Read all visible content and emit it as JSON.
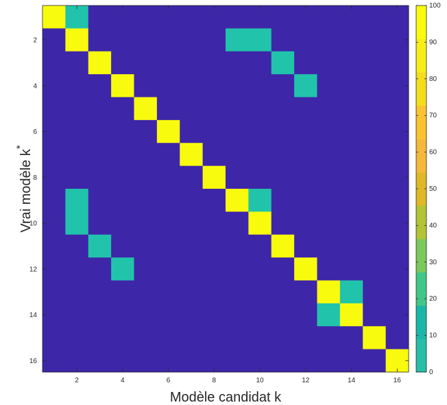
{
  "chart_data": {
    "type": "heatmap",
    "xlabel": "Modèle candidat k",
    "ylabel": "Vrai modèle k",
    "ylabel_superscript": "*",
    "x_categories": [
      1,
      2,
      3,
      4,
      5,
      6,
      7,
      8,
      9,
      10,
      11,
      12,
      13,
      14,
      15,
      16
    ],
    "y_categories": [
      1,
      2,
      3,
      4,
      5,
      6,
      7,
      8,
      9,
      10,
      11,
      12,
      13,
      14,
      15,
      16
    ],
    "x_tick_labels": [
      "2",
      "4",
      "6",
      "8",
      "10",
      "12",
      "14",
      "16"
    ],
    "y_tick_labels": [
      "2",
      "4",
      "6",
      "8",
      "10",
      "12",
      "14",
      "16"
    ],
    "grid": false,
    "colorbar": {
      "range": [
        0,
        100
      ],
      "tick_labels": [
        "0",
        "10",
        "20",
        "30",
        "40",
        "50",
        "60",
        "70",
        "80",
        "90",
        "100"
      ],
      "placement": "right"
    },
    "colors": {
      "low": "#3e26a8",
      "mid": "#21c4ab",
      "high": "#f9fb0e",
      "colorbar_steps": [
        "#28bda8",
        "#1ab7a8",
        "#42c688",
        "#7cc95b",
        "#b2c436",
        "#dfb827",
        "#f6b83b",
        "#fcc331",
        "#f5dd1e",
        "#f7ee19",
        "#f9fb0e"
      ]
    },
    "values": [
      [
        100,
        10,
        0,
        0,
        0,
        0,
        0,
        0,
        0,
        0,
        0,
        0,
        0,
        0,
        0,
        0
      ],
      [
        0,
        90,
        0,
        0,
        0,
        0,
        0,
        0,
        10,
        10,
        0,
        0,
        0,
        0,
        0,
        0
      ],
      [
        0,
        0,
        100,
        0,
        0,
        0,
        0,
        0,
        0,
        0,
        10,
        0,
        0,
        0,
        0,
        0
      ],
      [
        0,
        0,
        0,
        100,
        0,
        0,
        0,
        0,
        0,
        0,
        0,
        10,
        0,
        0,
        0,
        0
      ],
      [
        0,
        0,
        0,
        0,
        100,
        0,
        0,
        0,
        0,
        0,
        0,
        0,
        0,
        0,
        0,
        0
      ],
      [
        0,
        0,
        0,
        0,
        0,
        100,
        0,
        0,
        0,
        0,
        0,
        0,
        0,
        0,
        0,
        0
      ],
      [
        0,
        0,
        0,
        0,
        0,
        0,
        100,
        0,
        0,
        0,
        0,
        0,
        0,
        0,
        0,
        0
      ],
      [
        0,
        0,
        0,
        0,
        0,
        0,
        0,
        100,
        0,
        0,
        0,
        0,
        0,
        0,
        0,
        0
      ],
      [
        0,
        10,
        0,
        0,
        0,
        0,
        0,
        0,
        100,
        10,
        0,
        0,
        0,
        0,
        0,
        0
      ],
      [
        0,
        10,
        0,
        0,
        0,
        0,
        0,
        0,
        0,
        90,
        0,
        0,
        0,
        0,
        0,
        0
      ],
      [
        0,
        0,
        10,
        0,
        0,
        0,
        0,
        0,
        0,
        0,
        100,
        0,
        0,
        0,
        0,
        0
      ],
      [
        0,
        0,
        0,
        10,
        0,
        0,
        0,
        0,
        0,
        0,
        0,
        100,
        0,
        0,
        0,
        0
      ],
      [
        0,
        0,
        0,
        0,
        0,
        0,
        0,
        0,
        0,
        0,
        0,
        0,
        100,
        10,
        0,
        0
      ],
      [
        0,
        0,
        0,
        0,
        0,
        0,
        0,
        0,
        0,
        0,
        0,
        0,
        10,
        100,
        0,
        0
      ],
      [
        0,
        0,
        0,
        0,
        0,
        0,
        0,
        0,
        0,
        0,
        0,
        0,
        0,
        0,
        100,
        0
      ],
      [
        0,
        0,
        0,
        0,
        0,
        0,
        0,
        0,
        0,
        0,
        0,
        0,
        0,
        0,
        0,
        100
      ]
    ]
  }
}
